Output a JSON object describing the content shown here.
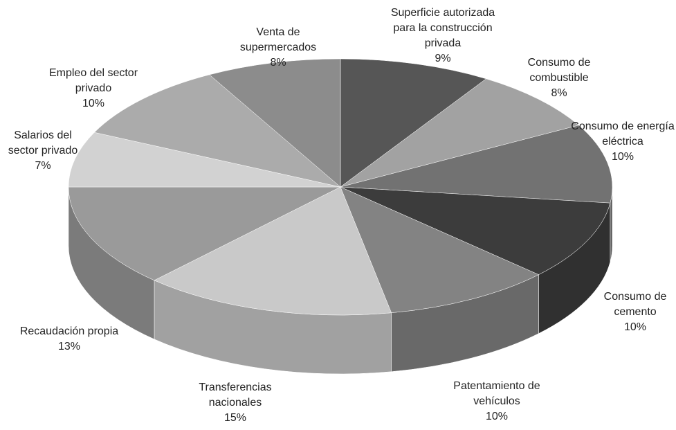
{
  "chart_data": {
    "type": "pie3d",
    "categories": [
      "Superficie autorizada para la construcción privada",
      "Consumo de combustible",
      "Consumo de energía eléctrica",
      "Consumo de cemento",
      "Patentamiento de vehículos",
      "Transferencias nacionales",
      "Recaudación propia",
      "Salarios del sector privado",
      "Empleo del sector privado",
      "Venta de supermercados"
    ],
    "values": [
      9,
      8,
      10,
      10,
      10,
      15,
      13,
      7,
      10,
      8
    ],
    "value_labels": [
      "9%",
      "8%",
      "10%",
      "10%",
      "10%",
      "15%",
      "13%",
      "7%",
      "10%",
      "8%"
    ],
    "colors": [
      "#565656",
      "#a2a2a2",
      "#727272",
      "#3c3c3c",
      "#838383",
      "#c9c9c9",
      "#9a9a9a",
      "#d2d2d2",
      "#ababab",
      "#8c8c8c"
    ]
  }
}
